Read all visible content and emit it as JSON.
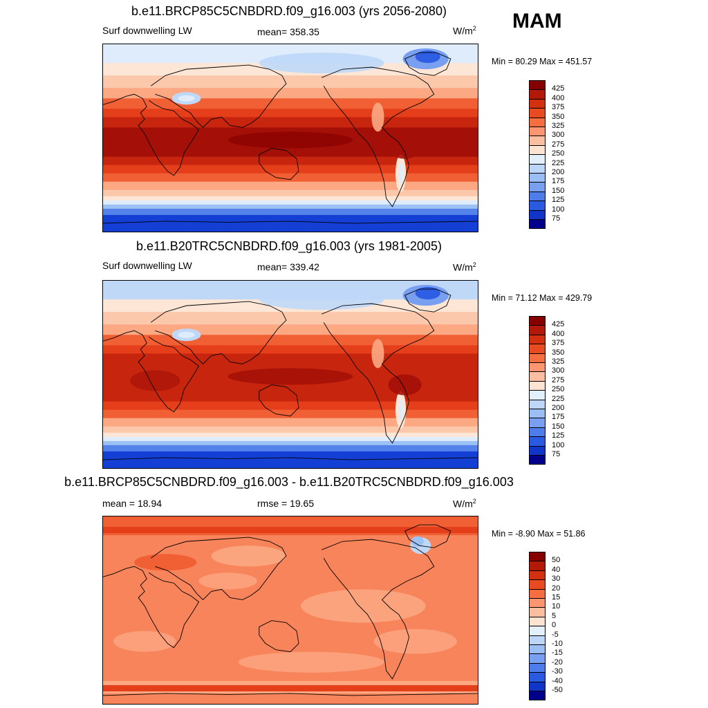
{
  "season": "MAM",
  "colors": {
    "warm": [
      "#fde6d6",
      "#fcc8ac",
      "#fba883",
      "#f7845a",
      "#f06034",
      "#e43e1b",
      "#c8250e",
      "#a41008",
      "#870000"
    ],
    "cool": [
      "#dfecfb",
      "#bfd8f8",
      "#9cc1f5",
      "#789ff0",
      "#5582ea",
      "#2e5ee3",
      "#143fd4",
      "#0a23b4",
      "#000a8c"
    ]
  },
  "panels": [
    {
      "title": "b.e11.BRCP85C5CNBDRD.f09_g16.003 (yrs 2056-2080)",
      "left_label": "Surf downwelling LW",
      "mid_label": "mean= 358.35",
      "units": "W/m",
      "units_sup": "2",
      "minmax": "Min =  80.29 Max = 451.57",
      "colorbar_labels": [
        "425",
        "400",
        "375",
        "350",
        "325",
        "300",
        "275",
        "250",
        "225",
        "200",
        "175",
        "150",
        "125",
        "100",
        "75"
      ],
      "colorbar_colors": [
        "#870000",
        "#b31909",
        "#d2300e",
        "#e84a22",
        "#f56e42",
        "#fb9670",
        "#fcbea0",
        "#fde4d2",
        "#e4effc",
        "#bdd6f8",
        "#9bbff4",
        "#789ff0",
        "#4f7ceb",
        "#2a59e2",
        "#1035c8",
        "#00008c"
      ]
    },
    {
      "title": "b.e11.B20TRC5CNBDRD.f09_g16.003 (yrs 1981-2005)",
      "left_label": "Surf downwelling LW",
      "mid_label": "mean= 339.42",
      "units": "W/m",
      "units_sup": "2",
      "minmax": "Min =  71.12 Max = 429.79",
      "colorbar_labels": [
        "425",
        "400",
        "375",
        "350",
        "325",
        "300",
        "275",
        "250",
        "225",
        "200",
        "175",
        "150",
        "125",
        "100",
        "75"
      ],
      "colorbar_colors": [
        "#870000",
        "#b31909",
        "#d2300e",
        "#e84a22",
        "#f56e42",
        "#fb9670",
        "#fcbea0",
        "#fde4d2",
        "#e4effc",
        "#bdd6f8",
        "#9bbff4",
        "#789ff0",
        "#4f7ceb",
        "#2a59e2",
        "#1035c8",
        "#00008c"
      ]
    },
    {
      "title": "b.e11.BRCP85C5CNBDRD.f09_g16.003 - b.e11.B20TRC5CNBDRD.f09_g16.003",
      "left_label": "mean =  18.94",
      "mid_label": "rmse =  19.65",
      "units": "W/m",
      "units_sup": "2",
      "minmax": "Min =  -8.90 Max =  51.86",
      "colorbar_labels": [
        "50",
        "40",
        "30",
        "20",
        "15",
        "10",
        "5",
        "0",
        "-5",
        "-10",
        "-15",
        "-20",
        "-30",
        "-40",
        "-50"
      ],
      "colorbar_colors": [
        "#870000",
        "#b31909",
        "#d2300e",
        "#e84a22",
        "#f56e42",
        "#fb9670",
        "#fcbea0",
        "#fde4d2",
        "#e4effc",
        "#bdd6f8",
        "#9bbff4",
        "#789ff0",
        "#4f7ceb",
        "#2a59e2",
        "#1035c8",
        "#00008c"
      ]
    }
  ]
}
